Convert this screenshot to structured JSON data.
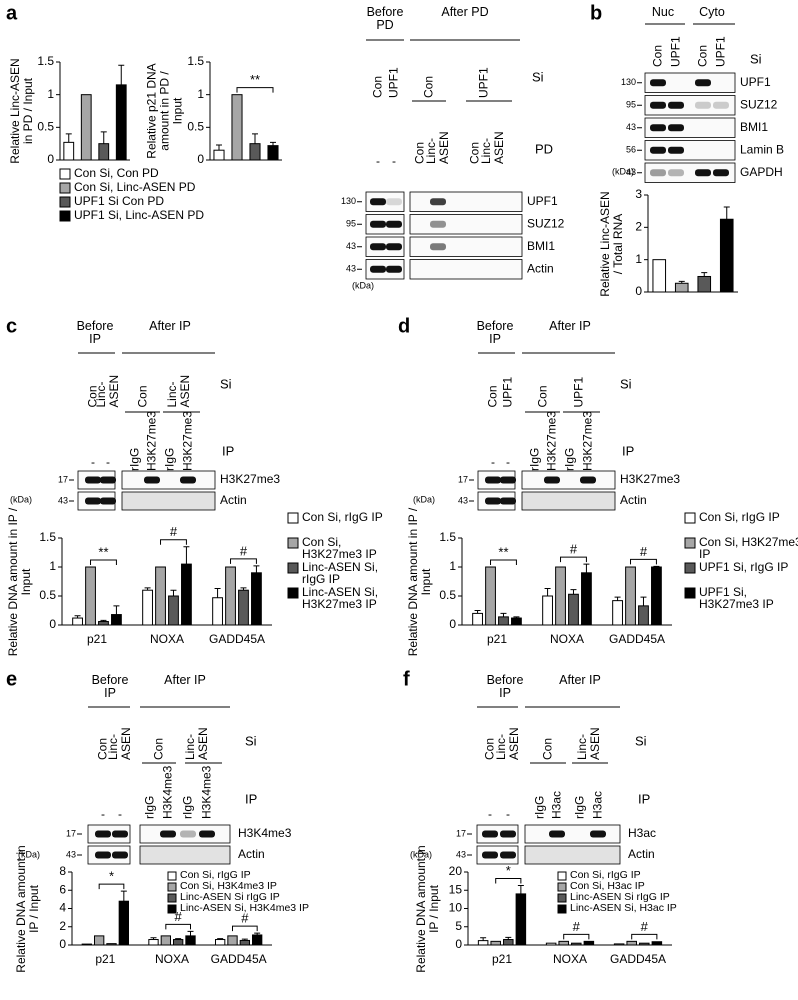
{
  "panels": [
    "a",
    "b",
    "c",
    "d",
    "e",
    "f"
  ],
  "chart_data": [
    {
      "type": "bar",
      "ylabel": "Relative Linc-ASEN in PD / Input",
      "ylim": [
        0,
        1.5
      ],
      "yticks": [
        0,
        0.5,
        1,
        1.5
      ],
      "series": [
        {
          "name": "Con Si, Con PD",
          "color": "#ffffff",
          "values": [
            0.27
          ],
          "errors": [
            0.13
          ]
        },
        {
          "name": "Con Si, Linc-ASEN PD",
          "color": "#a6a6a6",
          "values": [
            1
          ],
          "errors": [
            null
          ]
        },
        {
          "name": "UPF1 Si Con PD",
          "color": "#595959",
          "values": [
            0.25
          ],
          "errors": [
            0.18
          ]
        },
        {
          "name": "UPF1 Si, Linc-ASEN PD",
          "color": "#000000",
          "values": [
            1.15
          ],
          "errors": [
            0.3
          ]
        }
      ]
    },
    {
      "type": "bar",
      "ylabel": "Relative p21 DNA amount in PD / Input",
      "ylim": [
        0,
        1.5
      ],
      "yticks": [
        0,
        0.5,
        1,
        1.5
      ],
      "annotations": [
        "**"
      ],
      "series": [
        {
          "color": "#ffffff",
          "values": [
            0.15
          ],
          "errors": [
            0.08
          ]
        },
        {
          "color": "#a6a6a6",
          "values": [
            1
          ],
          "errors": [
            null
          ]
        },
        {
          "color": "#595959",
          "values": [
            0.25
          ],
          "errors": [
            0.15
          ]
        },
        {
          "color": "#000000",
          "values": [
            0.22
          ],
          "errors": [
            0.05
          ]
        }
      ]
    },
    {
      "type": "bar",
      "ylabel": "Relative Linc-ASEN / Total RNA",
      "ylim": [
        0,
        3
      ],
      "yticks": [
        0,
        1,
        2,
        3
      ],
      "series": [
        {
          "color": "#ffffff",
          "values": [
            1
          ],
          "errors": [
            null
          ]
        },
        {
          "color": "#a6a6a6",
          "values": [
            0.27
          ],
          "errors": [
            0.06
          ]
        },
        {
          "color": "#595959",
          "values": [
            0.48
          ],
          "errors": [
            0.12
          ]
        },
        {
          "color": "#000000",
          "values": [
            2.25
          ],
          "errors": [
            0.38
          ]
        }
      ]
    },
    {
      "type": "bar",
      "ylabel": "Relative DNA amount in IP / Input",
      "ylim": [
        0,
        1.5
      ],
      "yticks": [
        0,
        0.5,
        1,
        1.5
      ],
      "categories": [
        "p21",
        "NOXA",
        "GADD45A"
      ],
      "annotations": [
        "**",
        "#",
        "#"
      ],
      "series": [
        {
          "name": "Con Si, rIgG IP",
          "color": "#ffffff",
          "values": [
            0.12,
            0.6,
            0.47
          ],
          "errors": [
            0.04,
            0.04,
            0.16
          ]
        },
        {
          "name": "Con Si, H3K27me3 IP",
          "color": "#a6a6a6",
          "values": [
            1,
            1,
            1
          ],
          "errors": [
            null,
            null,
            null
          ]
        },
        {
          "name": "Linc-ASEN Si, rIgG IP",
          "color": "#595959",
          "values": [
            0.06,
            0.5,
            0.6
          ],
          "errors": [
            0.02,
            0.1,
            0.04
          ]
        },
        {
          "name": "Linc-ASEN Si, H3K27me3 IP",
          "color": "#000000",
          "values": [
            0.18,
            1.05,
            0.9
          ],
          "errors": [
            0.15,
            0.3,
            0.12
          ]
        }
      ]
    },
    {
      "type": "bar",
      "ylabel": "Relative DNA amount in IP / Input",
      "ylim": [
        0,
        1.5
      ],
      "yticks": [
        0,
        0.5,
        1,
        1.5
      ],
      "categories": [
        "p21",
        "NOXA",
        "GADD45A"
      ],
      "annotations": [
        "**",
        "#",
        "#"
      ],
      "series": [
        {
          "name": "Con Si, rIgG IP",
          "color": "#ffffff",
          "values": [
            0.2,
            0.5,
            0.42
          ],
          "errors": [
            0.05,
            0.13,
            0.06
          ]
        },
        {
          "name": "Con Si, H3K27me3 IP",
          "color": "#a6a6a6",
          "values": [
            1,
            1,
            1
          ],
          "errors": [
            null,
            null,
            null
          ]
        },
        {
          "name": "UPF1 Si, rIgG IP",
          "color": "#595959",
          "values": [
            0.14,
            0.53,
            0.33
          ],
          "errors": [
            0.06,
            0.08,
            0.15
          ]
        },
        {
          "name": "UPF1 Si, H3K27me3 IP",
          "color": "#000000",
          "values": [
            0.12,
            0.9,
            1
          ],
          "errors": [
            0.02,
            0.15,
            0.01
          ]
        }
      ]
    },
    {
      "type": "bar",
      "ylabel": "Relative DNA amount in IP / Input",
      "ylim": [
        0,
        8
      ],
      "yticks": [
        0,
        2,
        4,
        6,
        8
      ],
      "categories": [
        "p21",
        "NOXA",
        "GADD45A"
      ],
      "annotations": [
        "*",
        "#",
        "#"
      ],
      "series": [
        {
          "name": "Con Si, rIgG IP",
          "color": "#ffffff",
          "values": [
            0.1,
            0.6,
            0.6
          ],
          "errors": [
            null,
            0.2,
            0.1
          ]
        },
        {
          "name": "Con Si, H3K4me3 IP",
          "color": "#a6a6a6",
          "values": [
            1,
            1,
            1
          ],
          "errors": [
            null,
            null,
            null
          ]
        },
        {
          "name": "Linc-ASEN Si rIgG IP",
          "color": "#595959",
          "values": [
            0.15,
            0.6,
            0.5
          ],
          "errors": [
            null,
            0.1,
            0.15
          ]
        },
        {
          "name": "Linc-ASEN Si, H3K4me3 IP",
          "color": "#000000",
          "values": [
            4.8,
            1,
            1.1
          ],
          "errors": [
            1.1,
            0.5,
            0.2
          ]
        }
      ]
    },
    {
      "type": "bar",
      "ylabel": "Relative DNA amount in IP / Input",
      "ylim": [
        0,
        20
      ],
      "yticks": [
        0,
        5,
        10,
        15,
        20
      ],
      "categories": [
        "p21",
        "NOXA",
        "GADD45A"
      ],
      "annotations": [
        "*",
        "#",
        "#"
      ],
      "series": [
        {
          "name": "Con Si, rIgG IP",
          "color": "#ffffff",
          "values": [
            1.2,
            0.5,
            0.3
          ],
          "errors": [
            0.8,
            null,
            null
          ]
        },
        {
          "name": "Con Si, H3ac IP",
          "color": "#a6a6a6",
          "values": [
            1,
            1,
            1
          ],
          "errors": [
            null,
            null,
            null
          ]
        },
        {
          "name": "Linc-ASEN Si rIgG IP",
          "color": "#595959",
          "values": [
            1.5,
            0.5,
            0.5
          ],
          "errors": [
            0.6,
            null,
            null
          ]
        },
        {
          "name": "Linc-ASEN Si, H3ac IP",
          "color": "#000000",
          "values": [
            14,
            1,
            0.9
          ],
          "errors": [
            2.3,
            null,
            null
          ]
        }
      ]
    }
  ],
  "blots": [
    {
      "groups": [
        "Before PD",
        "After PD"
      ],
      "si_label": "Si",
      "si": [
        "Con",
        "UPF1",
        "Con",
        "UPF1"
      ],
      "second_label": "PD",
      "second": [
        "-",
        "-",
        "Con",
        "Linc-ASEN",
        "Con",
        "Linc-ASEN"
      ],
      "proteins": [
        "UPF1",
        "SUZ12",
        "BMI1",
        "Actin"
      ],
      "markers": [
        "130",
        "95",
        "43",
        "43"
      ],
      "unit": "(kDa)"
    },
    {
      "groups": [
        "Nuc",
        "Cyto"
      ],
      "si_label": "Si",
      "si": [
        "Con",
        "UPF1",
        "Con",
        "UPF1"
      ],
      "proteins": [
        "UPF1",
        "SUZ12",
        "BMI1",
        "Lamin B",
        "GAPDH"
      ],
      "markers": [
        "130",
        "95",
        "43",
        "56",
        "43"
      ],
      "unit": "(kDa)"
    },
    {
      "groups": [
        "Before IP",
        "After IP"
      ],
      "si_label": "Si",
      "si": [
        "Con",
        "Linc-ASEN",
        "Con",
        "Linc-ASEN"
      ],
      "second_label": "IP",
      "second": [
        "-",
        "-",
        "rIgG",
        "H3K27me3",
        "rIgG",
        "H3K27me3"
      ],
      "proteins": [
        "H3K27me3",
        "Actin"
      ],
      "markers": [
        "17",
        "43"
      ],
      "unit": "(kDa)"
    },
    {
      "groups": [
        "Before IP",
        "After IP"
      ],
      "si_label": "Si",
      "si": [
        "Con",
        "UPF1",
        "Con",
        "UPF1"
      ],
      "second_label": "IP",
      "second": [
        "-",
        "-",
        "rIgG",
        "H3K27me3",
        "rIgG",
        "H3K27me3"
      ],
      "proteins": [
        "H3K27me3",
        "Actin"
      ],
      "markers": [
        "17",
        "43"
      ],
      "unit": "(kDa)"
    },
    {
      "groups": [
        "Before IP",
        "After IP"
      ],
      "si_label": "Si",
      "si": [
        "Con",
        "Linc-ASEN",
        "Con",
        "Linc-ASEN"
      ],
      "second_label": "IP",
      "second": [
        "-",
        "-",
        "rIgG",
        "H3K4me3",
        "rIgG",
        "H3K4me3"
      ],
      "proteins": [
        "H3K4me3",
        "Actin"
      ],
      "markers": [
        "17",
        "43"
      ],
      "unit": "(kDa)"
    },
    {
      "groups": [
        "Before IP",
        "After IP"
      ],
      "si_label": "Si",
      "si": [
        "Con",
        "Linc-ASEN",
        "Con",
        "Linc-ASEN"
      ],
      "second_label": "IP",
      "second": [
        "-",
        "-",
        "rIgG",
        "H3ac",
        "rIgG",
        "H3ac"
      ],
      "proteins": [
        "H3ac",
        "Actin"
      ],
      "markers": [
        "17",
        "43"
      ],
      "unit": "(kDa)"
    }
  ]
}
